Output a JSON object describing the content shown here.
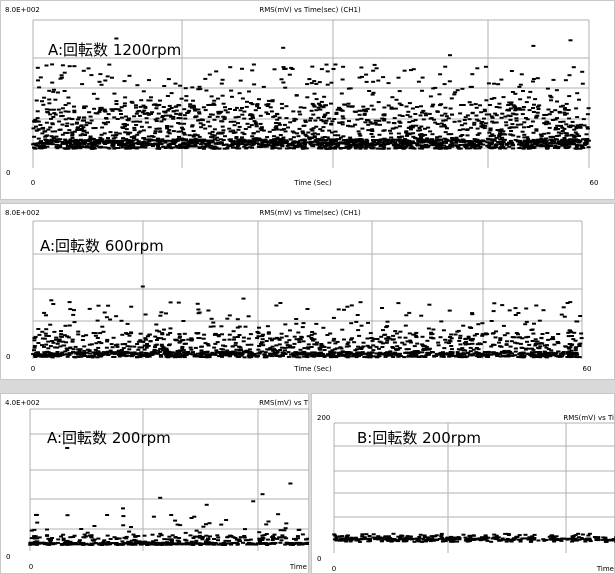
{
  "chart_data": [
    {
      "type": "scatter",
      "header_left": "8.0E+002",
      "title": "RMS(mV) vs Time(sec) (CH1)",
      "xlabel": "Time (Sec)",
      "x_ticks": [
        "0",
        "60"
      ],
      "y_ticks": [
        "0"
      ],
      "annotation": "A:回転数 1200rpm",
      "xlim": [
        0,
        60
      ],
      "ylim": [
        0,
        800
      ],
      "grid": true,
      "baseline": 130,
      "band_top": 340,
      "spread_max": 560,
      "outliers": [
        [
          9,
          700
        ],
        [
          27,
          650
        ],
        [
          45,
          610
        ],
        [
          54,
          660
        ],
        [
          58,
          690
        ]
      ],
      "point_count": 2600
    },
    {
      "type": "scatter",
      "header_left": "8.0E+002",
      "title": "RMS(mV) vs Time(sec) (CH1)",
      "xlabel": "Time (Sec)",
      "x_ticks": [
        "0",
        "60"
      ],
      "y_ticks": [
        "0"
      ],
      "annotation": "A:回転数 600rpm",
      "xlim": [
        0,
        60
      ],
      "ylim": [
        0,
        800
      ],
      "grid": true,
      "baseline": 25,
      "band_top": 150,
      "spread_max": 330,
      "outliers": [
        [
          2,
          340
        ],
        [
          4,
          330
        ],
        [
          12,
          420
        ],
        [
          18,
          320
        ],
        [
          23,
          350
        ],
        [
          30,
          290
        ],
        [
          55,
          310
        ],
        [
          58,
          300
        ]
      ],
      "point_count": 1600
    },
    {
      "type": "scatter",
      "header_left": "4.0E+002",
      "title": "RMS(mV) vs T",
      "xlabel": "Time",
      "x_ticks": [
        "0"
      ],
      "y_ticks": [
        "0"
      ],
      "annotation": "A:回転数 200rpm",
      "xlim": [
        0,
        30
      ],
      "ylim": [
        0,
        400
      ],
      "grid": true,
      "baseline": 20,
      "band_top": 45,
      "spread_max": 110,
      "outliers": [
        [
          4,
          290
        ],
        [
          10,
          120
        ],
        [
          14,
          150
        ],
        [
          19,
          130
        ],
        [
          25,
          160
        ],
        [
          28,
          190
        ],
        [
          24,
          140
        ]
      ],
      "point_count": 520
    },
    {
      "type": "scatter",
      "header_left": "200",
      "title": "RMS(mV) vs Ti",
      "xlabel": "Time",
      "x_ticks": [
        "0"
      ],
      "y_ticks": [
        "0"
      ],
      "annotation": "B:回転数 200rpm",
      "xlim": [
        0,
        30
      ],
      "ylim": [
        0,
        200
      ],
      "grid": true,
      "baseline": 20,
      "band_top": 26,
      "spread_max": 30,
      "outliers": [],
      "point_count": 420
    }
  ]
}
